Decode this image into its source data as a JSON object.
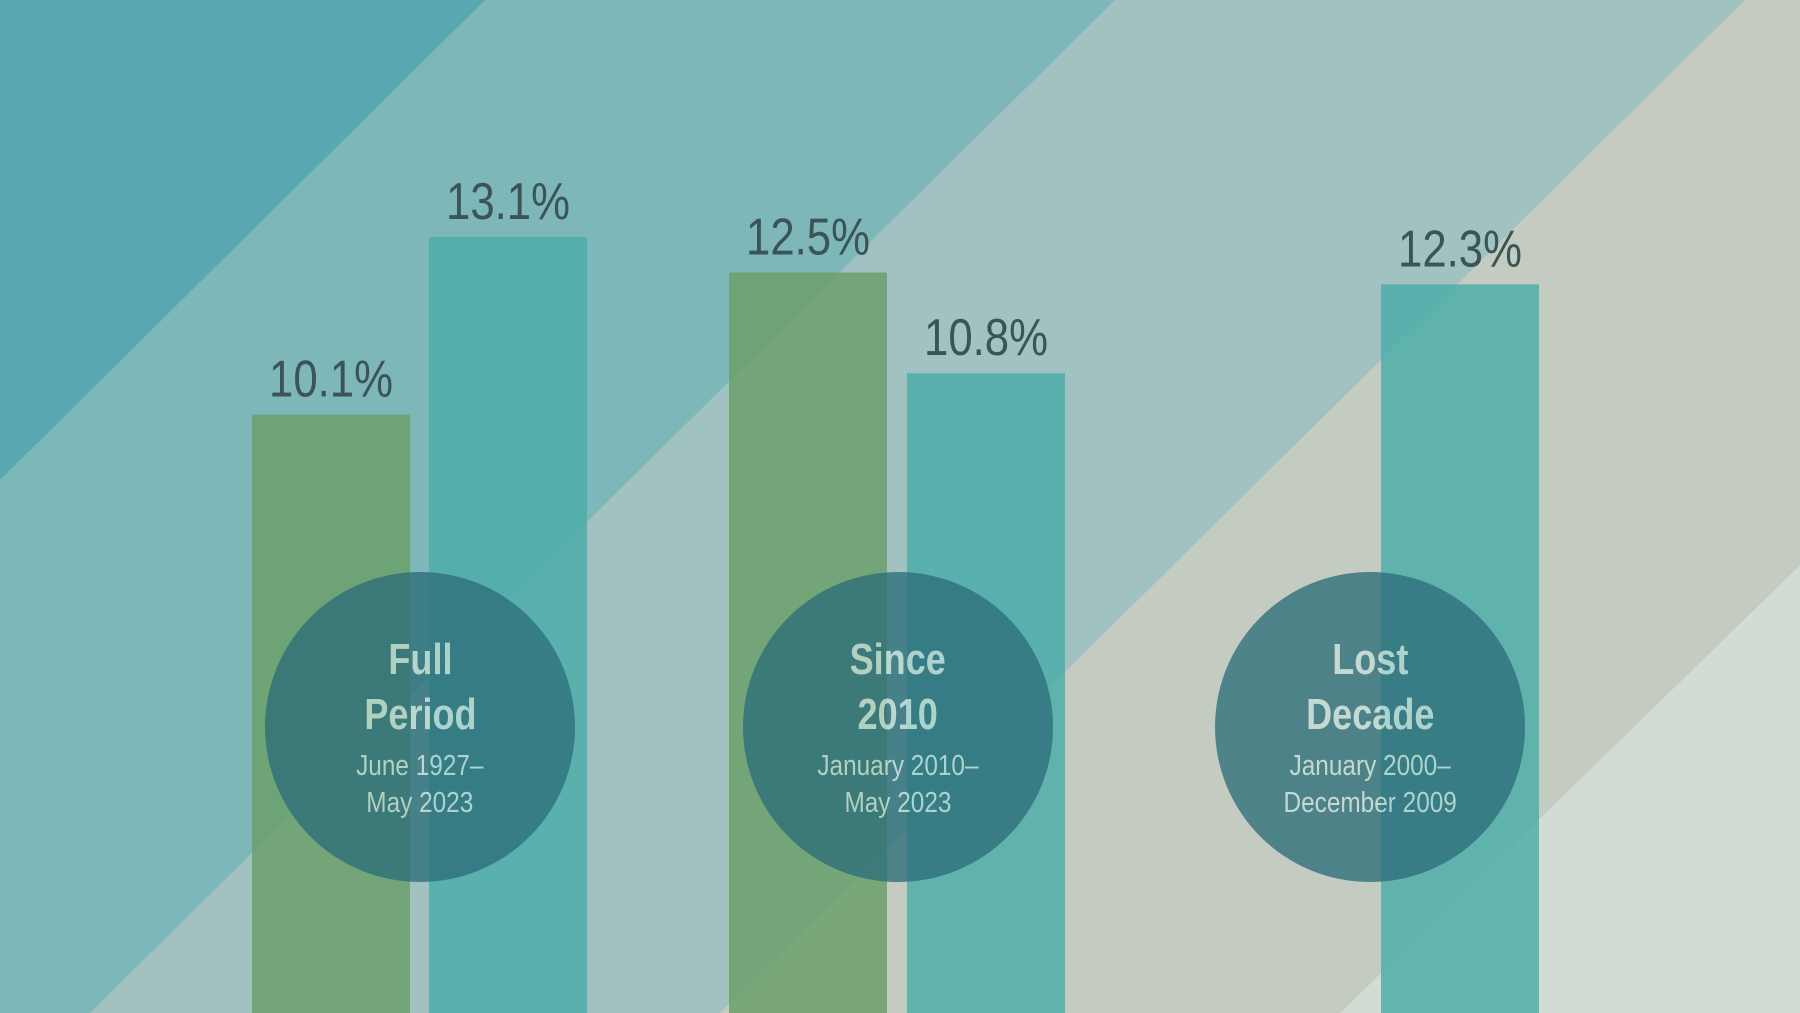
{
  "chart_data": {
    "type": "bar",
    "title": "",
    "xlabel": "",
    "ylabel": "",
    "ylim": [
      0,
      17.1
    ],
    "groups": [
      {
        "title": "Full Period",
        "subtitle": "June 1927–May 2023",
        "title_lines": [
          "Full",
          "Period"
        ],
        "subtitle_lines": [
          "June 1927–",
          "May 2023"
        ],
        "bars": [
          {
            "value": 10.1,
            "label": "10.1%",
            "color": "#6a9f68"
          },
          {
            "value": 13.1,
            "label": "13.1%",
            "color": "#4aaca8"
          }
        ]
      },
      {
        "title": "Since 2010",
        "subtitle": "January 2010–May 2023",
        "title_lines": [
          "Since",
          "2010"
        ],
        "subtitle_lines": [
          "January 2010–",
          "May 2023"
        ],
        "bars": [
          {
            "value": 12.5,
            "label": "12.5%",
            "color": "#6a9f68"
          },
          {
            "value": 10.8,
            "label": "10.8%",
            "color": "#4aaca8"
          }
        ]
      },
      {
        "title": "Lost Decade",
        "subtitle": "January 2000–December 2009",
        "title_lines": [
          "Lost",
          "Decade"
        ],
        "subtitle_lines": [
          "January 2000–",
          "December 2009"
        ],
        "bars": [
          {
            "value": 12.3,
            "label": "12.3%",
            "color": "#4aaca8"
          }
        ]
      }
    ],
    "colors": {
      "series_a": "#6a9f68",
      "series_b": "#4aaca8",
      "circle_fill": "#2d6e7a",
      "label_text": "#3a5457"
    }
  }
}
